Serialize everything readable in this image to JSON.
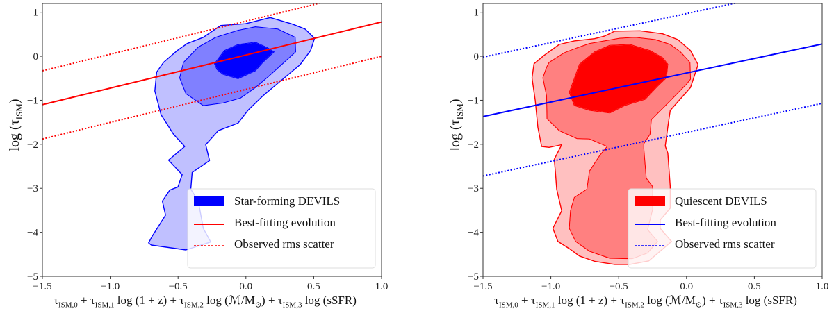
{
  "chart_data": [
    {
      "type": "contour",
      "xlim": [
        -1.5,
        1.0
      ],
      "ylim": [
        -5,
        1.2
      ],
      "xticks": [
        -1.5,
        -1.0,
        -0.5,
        0.0,
        0.5,
        1.0
      ],
      "xtick_labels": [
        "−1.5",
        "−1.0",
        "−0.5",
        "0.0",
        "0.5",
        "1.0"
      ],
      "yticks": [
        -5,
        -4,
        -3,
        -2,
        -1,
        0,
        1
      ],
      "ytick_labels": [
        "−5",
        "−4",
        "−3",
        "−2",
        "−1",
        "0",
        "1"
      ],
      "xlabel": "τ_{ISM,0} + τ_{ISM,1} log (1 + z) + τ_{ISM,2} log (ℳ/M_{⊙}) + τ_{ISM,3} log (sSFR)",
      "ylabel": "log (τ_{ISM})",
      "grid": false,
      "legend_placement": "lower-right",
      "contour_edge_color": "#0000ff",
      "contour_fill_colors": [
        "#c0c0ff",
        "#8080ff",
        "#0000ff"
      ],
      "line_color": "#ff0000",
      "contours": [
        {
          "level": "outer",
          "points": [
            [
              -0.717,
              -4.24
            ],
            [
              -0.689,
              -4.08
            ],
            [
              -0.592,
              -3.61
            ],
            [
              -0.616,
              -3.29
            ],
            [
              -0.561,
              -3.04
            ],
            [
              -0.501,
              -2.97
            ],
            [
              -0.47,
              -2.69
            ],
            [
              -0.57,
              -2.36
            ],
            [
              -0.451,
              -2.05
            ],
            [
              -0.534,
              -1.77
            ],
            [
              -0.625,
              -1.33
            ],
            [
              -0.671,
              -0.79
            ],
            [
              -0.658,
              -0.36
            ],
            [
              -0.607,
              -0.14
            ],
            [
              -0.506,
              0.13
            ],
            [
              -0.433,
              0.29
            ],
            [
              -0.314,
              0.43
            ],
            [
              -0.186,
              0.7
            ],
            [
              -0.003,
              0.74
            ],
            [
              0.18,
              0.88
            ],
            [
              0.345,
              0.73
            ],
            [
              0.436,
              0.62
            ],
            [
              0.506,
              0.41
            ],
            [
              0.477,
              0.13
            ],
            [
              0.4,
              -0.19
            ],
            [
              0.272,
              -0.52
            ],
            [
              0.125,
              -0.9
            ],
            [
              0.015,
              -1.23
            ],
            [
              -0.058,
              -1.52
            ],
            [
              -0.204,
              -1.69
            ],
            [
              -0.296,
              -2.01
            ],
            [
              -0.268,
              -2.37
            ],
            [
              -0.396,
              -2.64
            ],
            [
              -0.406,
              -3.02
            ],
            [
              -0.351,
              -3.29
            ],
            [
              -0.314,
              -3.91
            ],
            [
              -0.259,
              -4.22
            ],
            [
              -0.442,
              -4.4
            ],
            [
              -0.698,
              -4.29
            ]
          ]
        },
        {
          "level": "middle",
          "points": [
            [
              -0.488,
              -0.49
            ],
            [
              -0.46,
              -0.14
            ],
            [
              -0.351,
              0.21
            ],
            [
              -0.223,
              0.43
            ],
            [
              -0.058,
              0.59
            ],
            [
              0.07,
              0.67
            ],
            [
              0.235,
              0.62
            ],
            [
              0.363,
              0.43
            ],
            [
              0.367,
              0.1
            ],
            [
              0.281,
              -0.14
            ],
            [
              0.162,
              -0.47
            ],
            [
              0.07,
              -0.71
            ],
            [
              -0.04,
              -0.95
            ],
            [
              -0.168,
              -1.06
            ],
            [
              -0.314,
              -1.12
            ],
            [
              -0.442,
              -0.85
            ]
          ]
        },
        {
          "level": "inner",
          "points": [
            [
              -0.232,
              -0.17
            ],
            [
              -0.159,
              0.13
            ],
            [
              -0.058,
              0.27
            ],
            [
              0.07,
              0.32
            ],
            [
              0.162,
              0.19
            ],
            [
              0.208,
              0.1
            ],
            [
              0.125,
              -0.14
            ],
            [
              0.07,
              -0.33
            ],
            [
              -0.058,
              -0.51
            ],
            [
              -0.168,
              -0.41
            ],
            [
              -0.213,
              -0.3
            ]
          ]
        }
      ],
      "best_fit": {
        "x": [
          -1.5,
          1.0
        ],
        "y": [
          -1.1,
          0.78
        ]
      },
      "rms_scatter": [
        {
          "x": [
            -1.5,
            1.0
          ],
          "y": [
            -0.33,
            1.55
          ]
        },
        {
          "x": [
            -1.5,
            1.0
          ],
          "y": [
            -1.88,
            0.0
          ]
        }
      ],
      "legend": [
        "Star-forming DEVILS",
        "Best-fitting evolution",
        "Observed rms scatter"
      ]
    },
    {
      "type": "contour",
      "xlim": [
        -1.5,
        1.0
      ],
      "ylim": [
        -5,
        1.2
      ],
      "xticks": [
        -1.5,
        -1.0,
        -0.5,
        0.0,
        0.5,
        1.0
      ],
      "xtick_labels": [
        "−1.5",
        "−1.0",
        "−0.5",
        "0.0",
        "0.5",
        "1.0"
      ],
      "yticks": [
        -5,
        -4,
        -3,
        -2,
        -1,
        0,
        1
      ],
      "ytick_labels": [
        "−5",
        "−4",
        "−3",
        "−2",
        "−1",
        "0",
        "1"
      ],
      "xlabel": "τ_{ISM,0} + τ_{ISM,1} log (1 + z) + τ_{ISM,2} log (ℳ/M_{⊙}) + τ_{ISM,3} log (sSFR)",
      "ylabel": "log (τ_{ISM})",
      "grid": false,
      "legend_placement": "lower-right",
      "contour_edge_color": "#ff0000",
      "contour_fill_colors": [
        "#ffc0c0",
        "#ff8080",
        "#ff0000"
      ],
      "line_color": "#0000ff",
      "contours": [
        {
          "level": "outer",
          "points": [
            [
              -1.124,
              -0.17
            ],
            [
              -1.139,
              -0.49
            ],
            [
              -1.115,
              -1.01
            ],
            [
              -1.096,
              -1.61
            ],
            [
              -1.068,
              -2.05
            ],
            [
              -1.013,
              -2.07
            ],
            [
              -0.92,
              -2.01
            ],
            [
              -0.975,
              -2.34
            ],
            [
              -0.966,
              -2.64
            ],
            [
              -0.957,
              -3.02
            ],
            [
              -0.92,
              -3.51
            ],
            [
              -0.985,
              -3.91
            ],
            [
              -0.948,
              -4.21
            ],
            [
              -0.864,
              -4.37
            ],
            [
              -0.789,
              -4.54
            ],
            [
              -0.678,
              -4.66
            ],
            [
              -0.529,
              -4.73
            ],
            [
              -0.417,
              -4.73
            ],
            [
              -0.278,
              -4.65
            ],
            [
              -0.213,
              -4.48
            ],
            [
              -0.11,
              -4.21
            ],
            [
              -0.194,
              -3.91
            ],
            [
              -0.194,
              -3.72
            ],
            [
              -0.12,
              -3.45
            ],
            [
              -0.12,
              -2.96
            ],
            [
              -0.138,
              -2.2
            ],
            [
              -0.157,
              -2.04
            ],
            [
              -0.135,
              -1.55
            ],
            [
              -0.12,
              -1.23
            ],
            [
              0.029,
              -0.71
            ],
            [
              0.085,
              -0.19
            ],
            [
              0.029,
              0.13
            ],
            [
              -0.064,
              0.38
            ],
            [
              -0.176,
              0.51
            ],
            [
              -0.343,
              0.58
            ],
            [
              -0.529,
              0.57
            ],
            [
              -0.603,
              0.46
            ],
            [
              -0.678,
              0.4
            ],
            [
              -0.827,
              0.35
            ],
            [
              -0.938,
              0.27
            ],
            [
              -1.05,
              0.02
            ]
          ]
        },
        {
          "level": "middle",
          "points": [
            [
              -1.031,
              -0.25
            ],
            [
              -1.059,
              -0.49
            ],
            [
              -1.031,
              -0.9
            ],
            [
              -1.028,
              -1.42
            ],
            [
              -0.938,
              -1.69
            ],
            [
              -0.808,
              -1.87
            ],
            [
              -0.715,
              -1.88
            ],
            [
              -0.585,
              -2.05
            ],
            [
              -0.641,
              -2.26
            ],
            [
              -0.715,
              -2.61
            ],
            [
              -0.734,
              -3.02
            ],
            [
              -0.827,
              -3.21
            ],
            [
              -0.855,
              -3.51
            ],
            [
              -0.864,
              -3.91
            ],
            [
              -0.817,
              -4.21
            ],
            [
              -0.715,
              -4.43
            ],
            [
              -0.566,
              -4.59
            ],
            [
              -0.399,
              -4.6
            ],
            [
              -0.287,
              -4.47
            ],
            [
              -0.213,
              -4.21
            ],
            [
              -0.287,
              -3.94
            ],
            [
              -0.25,
              -3.48
            ],
            [
              -0.25,
              -2.96
            ],
            [
              -0.297,
              -2.77
            ],
            [
              -0.315,
              -2.09
            ],
            [
              -0.315,
              -1.99
            ],
            [
              -0.269,
              -1.77
            ],
            [
              -0.259,
              -1.44
            ],
            [
              -0.12,
              -1.01
            ],
            [
              0.001,
              -0.63
            ],
            [
              0.029,
              -0.52
            ],
            [
              0.025,
              -0.14
            ],
            [
              -0.045,
              0.1
            ],
            [
              -0.12,
              0.27
            ],
            [
              -0.231,
              0.38
            ],
            [
              -0.38,
              0.43
            ],
            [
              -0.492,
              0.41
            ],
            [
              -0.603,
              0.35
            ],
            [
              -0.715,
              0.29
            ],
            [
              -0.808,
              0.19
            ],
            [
              -0.901,
              0.08
            ],
            [
              -1.013,
              -0.14
            ]
          ]
        },
        {
          "level": "inner",
          "points": [
            [
              -0.789,
              -0.18
            ],
            [
              -0.864,
              -0.82
            ],
            [
              -0.827,
              -1.12
            ],
            [
              -0.715,
              -1.23
            ],
            [
              -0.566,
              -1.29
            ],
            [
              -0.455,
              -1.12
            ],
            [
              -0.306,
              -0.98
            ],
            [
              -0.213,
              -0.68
            ],
            [
              -0.148,
              -0.49
            ],
            [
              -0.138,
              -0.18
            ],
            [
              -0.176,
              -0.03
            ],
            [
              -0.269,
              0.13
            ],
            [
              -0.417,
              0.27
            ],
            [
              -0.566,
              0.25
            ],
            [
              -0.678,
              0.1
            ]
          ]
        }
      ],
      "best_fit": {
        "x": [
          -1.5,
          1.0
        ],
        "y": [
          -1.37,
          0.28
        ]
      },
      "rms_scatter": [
        {
          "x": [
            -1.5,
            1.0
          ],
          "y": [
            -0.02,
            1.63
          ]
        },
        {
          "x": [
            -1.5,
            1.0
          ],
          "y": [
            -2.72,
            -1.07
          ]
        }
      ],
      "legend": [
        "Quiescent DEVILS",
        "Best-fitting evolution",
        "Observed rms scatter"
      ]
    }
  ]
}
